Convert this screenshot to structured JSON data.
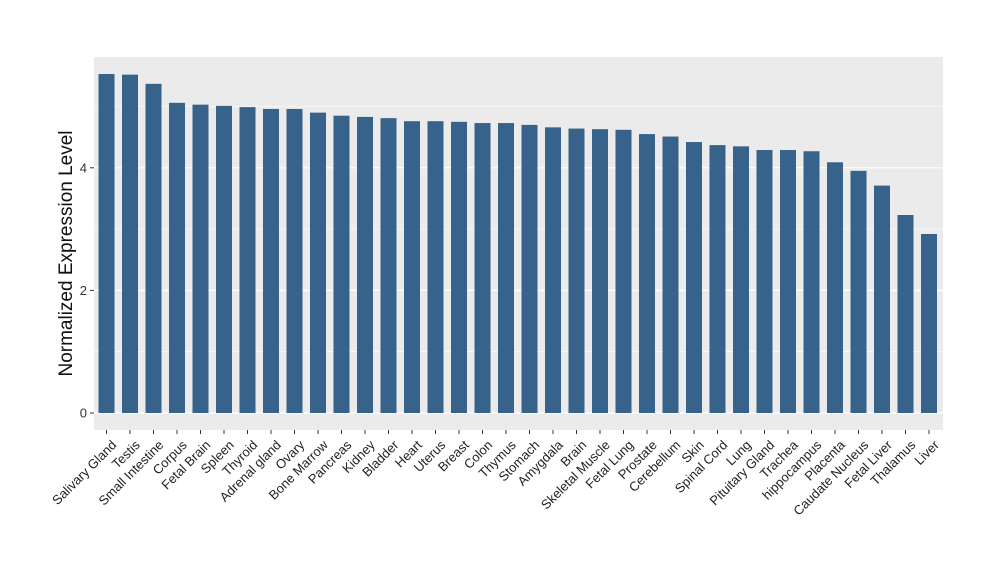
{
  "chart_data": {
    "type": "bar",
    "title": "",
    "xlabel": "",
    "ylabel": "Normalized Expression Level",
    "ylim": [
      0,
      5.7
    ],
    "yticks": [
      0,
      2,
      4
    ],
    "grid": true,
    "legend": "none",
    "bar_color": "#37628a",
    "panel_background": "#ebebeb",
    "gridline_color": "#ffffff",
    "categories": [
      "Salivary Gland",
      "Testis",
      "Small Intestine",
      "Corpus",
      "Fetal Brain",
      "Spleen",
      "Thyroid",
      "Adrenal gland",
      "Ovary",
      "Bone Marrow",
      "Pancreas",
      "Kidney",
      "Bladder",
      "Heart",
      "Uterus",
      "Breast",
      "Colon",
      "Thymus",
      "Stomach",
      "Amygdala",
      "Brain",
      "Skeletal Muscle",
      "Fetal Lung",
      "Prostate",
      "Cerebellum",
      "Skin",
      "Spinal Cord",
      "Lung",
      "Pituitary Gland",
      "Trachea",
      "hippocampus",
      "Placenta",
      "Caudate Nucleus",
      "Fetal Liver",
      "Thalamus",
      "Liver"
    ],
    "values": [
      5.53,
      5.52,
      5.37,
      5.06,
      5.03,
      5.01,
      4.99,
      4.96,
      4.96,
      4.9,
      4.85,
      4.83,
      4.81,
      4.76,
      4.76,
      4.75,
      4.73,
      4.73,
      4.7,
      4.66,
      4.64,
      4.63,
      4.62,
      4.55,
      4.51,
      4.42,
      4.37,
      4.35,
      4.29,
      4.29,
      4.27,
      4.09,
      3.95,
      3.71,
      3.23,
      2.92
    ]
  }
}
